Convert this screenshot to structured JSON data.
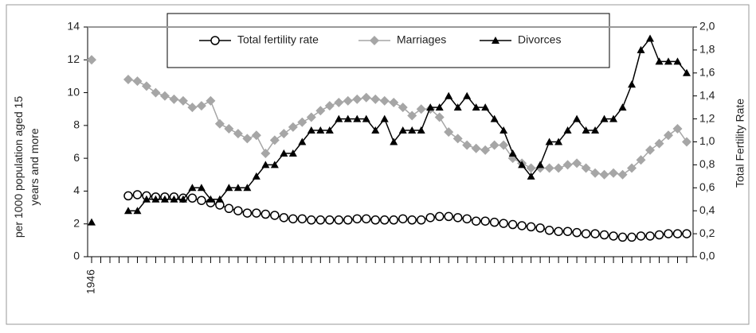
{
  "chart_data": {
    "type": "line",
    "categories": [
      "1946",
      null,
      null,
      null,
      null,
      null,
      null,
      null,
      null,
      null,
      null,
      null,
      null,
      null,
      null,
      null,
      null,
      null,
      null,
      null,
      null,
      null,
      null,
      null,
      null,
      null,
      null,
      null,
      null,
      null,
      null,
      null,
      null,
      null,
      null,
      null,
      null,
      null,
      null,
      null,
      null,
      null,
      null,
      null,
      null,
      null,
      null,
      null,
      null,
      null,
      null,
      null,
      null,
      null,
      null,
      null,
      null,
      null,
      null,
      null,
      null,
      null,
      null,
      null,
      null,
      null
    ],
    "y_label": [
      "per 1000 population aged 15",
      "years and more"
    ],
    "y2_label": "Total Fertility Rate",
    "ylim": [
      0,
      14
    ],
    "yticks": [
      0,
      2,
      4,
      6,
      8,
      10,
      12,
      14
    ],
    "y2lim": [
      0,
      2
    ],
    "y2ticks": [
      {
        "value": 0,
        "label": "0,0"
      },
      {
        "value": 0.2,
        "label": "0,2"
      },
      {
        "value": 0.4,
        "label": "0,4"
      },
      {
        "value": 0.6,
        "label": "0,6"
      },
      {
        "value": 0.8,
        "label": "0,8"
      },
      {
        "value": 1.0,
        "label": "1,0"
      },
      {
        "value": 1.2,
        "label": "1,2"
      },
      {
        "value": 1.4,
        "label": "1,4"
      },
      {
        "value": 1.6,
        "label": "1,6"
      },
      {
        "value": 1.8,
        "label": "1,8"
      },
      {
        "value": 2.0,
        "label": "2,0"
      }
    ],
    "legend": "top",
    "series": [
      {
        "name": "Total fertility rate",
        "color": "#000000",
        "axis": "y2",
        "marker": "circle",
        "values": [
          null,
          null,
          null,
          null,
          0.53,
          0.54,
          0.53,
          0.52,
          0.52,
          0.52,
          0.51,
          0.51,
          0.49,
          0.47,
          0.45,
          0.42,
          0.4,
          0.38,
          0.38,
          0.37,
          0.36,
          0.34,
          0.33,
          0.33,
          0.32,
          0.32,
          0.32,
          0.32,
          0.32,
          0.33,
          0.33,
          0.32,
          0.32,
          0.32,
          0.33,
          0.32,
          0.32,
          0.34,
          0.35,
          0.35,
          0.34,
          0.33,
          0.31,
          0.31,
          0.3,
          0.29,
          0.28,
          0.27,
          0.26,
          0.25,
          0.23,
          0.22,
          0.22,
          0.21,
          0.2,
          0.2,
          0.19,
          0.18,
          0.17,
          0.17,
          0.18,
          0.18,
          0.19,
          0.2,
          0.2,
          0.2
        ]
      },
      {
        "name": "Marriages",
        "color": "#a6a6a6",
        "marker": "diamond",
        "values": [
          12.0,
          null,
          null,
          null,
          10.8,
          10.7,
          10.4,
          10.0,
          9.8,
          9.6,
          9.5,
          9.1,
          9.2,
          9.5,
          8.1,
          7.8,
          7.5,
          7.2,
          7.4,
          6.3,
          7.1,
          7.5,
          7.9,
          8.2,
          8.5,
          8.9,
          9.2,
          9.4,
          9.5,
          9.6,
          9.7,
          9.6,
          9.5,
          9.4,
          9.1,
          8.6,
          9.0,
          9.0,
          8.5,
          7.6,
          7.2,
          6.8,
          6.6,
          6.5,
          6.8,
          6.8,
          6.0,
          5.7,
          5.4,
          5.4,
          5.4,
          5.4,
          5.6,
          5.7,
          5.4,
          5.1,
          5.0,
          5.1,
          5.0,
          5.4,
          5.9,
          6.5,
          6.9,
          7.4,
          7.8,
          7.0
        ]
      },
      {
        "name": "Divorces",
        "color": "#000000",
        "marker": "triangle",
        "values": [
          2.1,
          null,
          null,
          null,
          2.8,
          2.8,
          3.5,
          3.5,
          3.5,
          3.5,
          3.5,
          4.2,
          4.2,
          3.5,
          3.5,
          4.2,
          4.2,
          4.2,
          4.9,
          5.6,
          5.6,
          6.3,
          6.3,
          7.0,
          7.7,
          7.7,
          7.7,
          8.4,
          8.4,
          8.4,
          8.4,
          7.7,
          8.4,
          7.0,
          7.7,
          7.7,
          7.7,
          9.1,
          9.1,
          9.8,
          9.1,
          9.8,
          9.1,
          9.1,
          8.4,
          7.7,
          6.3,
          5.6,
          4.9,
          5.6,
          7.0,
          7.0,
          7.7,
          8.4,
          7.7,
          7.7,
          8.4,
          8.4,
          9.1,
          10.5,
          12.6,
          13.3,
          11.9,
          11.9,
          11.9,
          11.2
        ]
      }
    ]
  }
}
